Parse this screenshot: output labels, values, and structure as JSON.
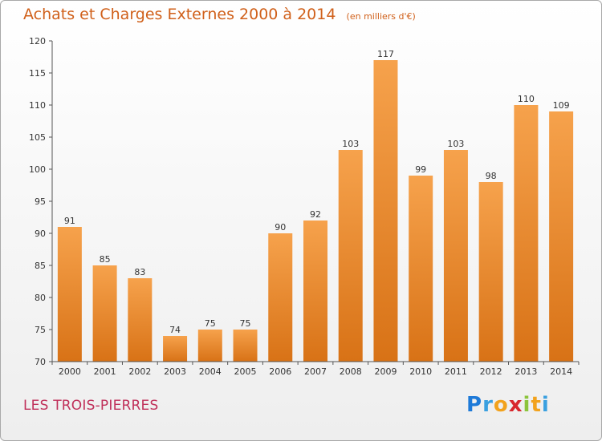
{
  "header": {
    "title": "Achats et Charges Externes 2000 à 2014",
    "subtitle": "(en milliers d'€)"
  },
  "footer": {
    "commune": "LES TROIS-PIERRES",
    "logo": {
      "letters": [
        "P",
        "r",
        "o",
        "x",
        "i",
        "t",
        "i"
      ],
      "colors": [
        "#1e7ad8",
        "#3aa0e0",
        "#f2a21c",
        "#d8272d",
        "#8cc43c",
        "#f2a21c",
        "#3aa0e0"
      ]
    }
  },
  "chart_data": {
    "type": "bar",
    "title": "Achats et Charges Externes 2000 à 2014",
    "subtitle": "(en milliers d'€)",
    "categories": [
      "2000",
      "2001",
      "2002",
      "2003",
      "2004",
      "2005",
      "2006",
      "2007",
      "2008",
      "2009",
      "2010",
      "2011",
      "2012",
      "2013",
      "2014"
    ],
    "values": [
      91,
      85,
      83,
      74,
      75,
      75,
      90,
      92,
      103,
      117,
      99,
      103,
      98,
      110,
      109
    ],
    "ylim": [
      70,
      120
    ],
    "yticks": [
      70,
      75,
      80,
      85,
      90,
      95,
      100,
      105,
      110,
      115,
      120
    ],
    "grid": false,
    "colors": {
      "bar_top": "#f6a24c",
      "bar_bottom": "#d87216",
      "axis": "#555555"
    }
  }
}
